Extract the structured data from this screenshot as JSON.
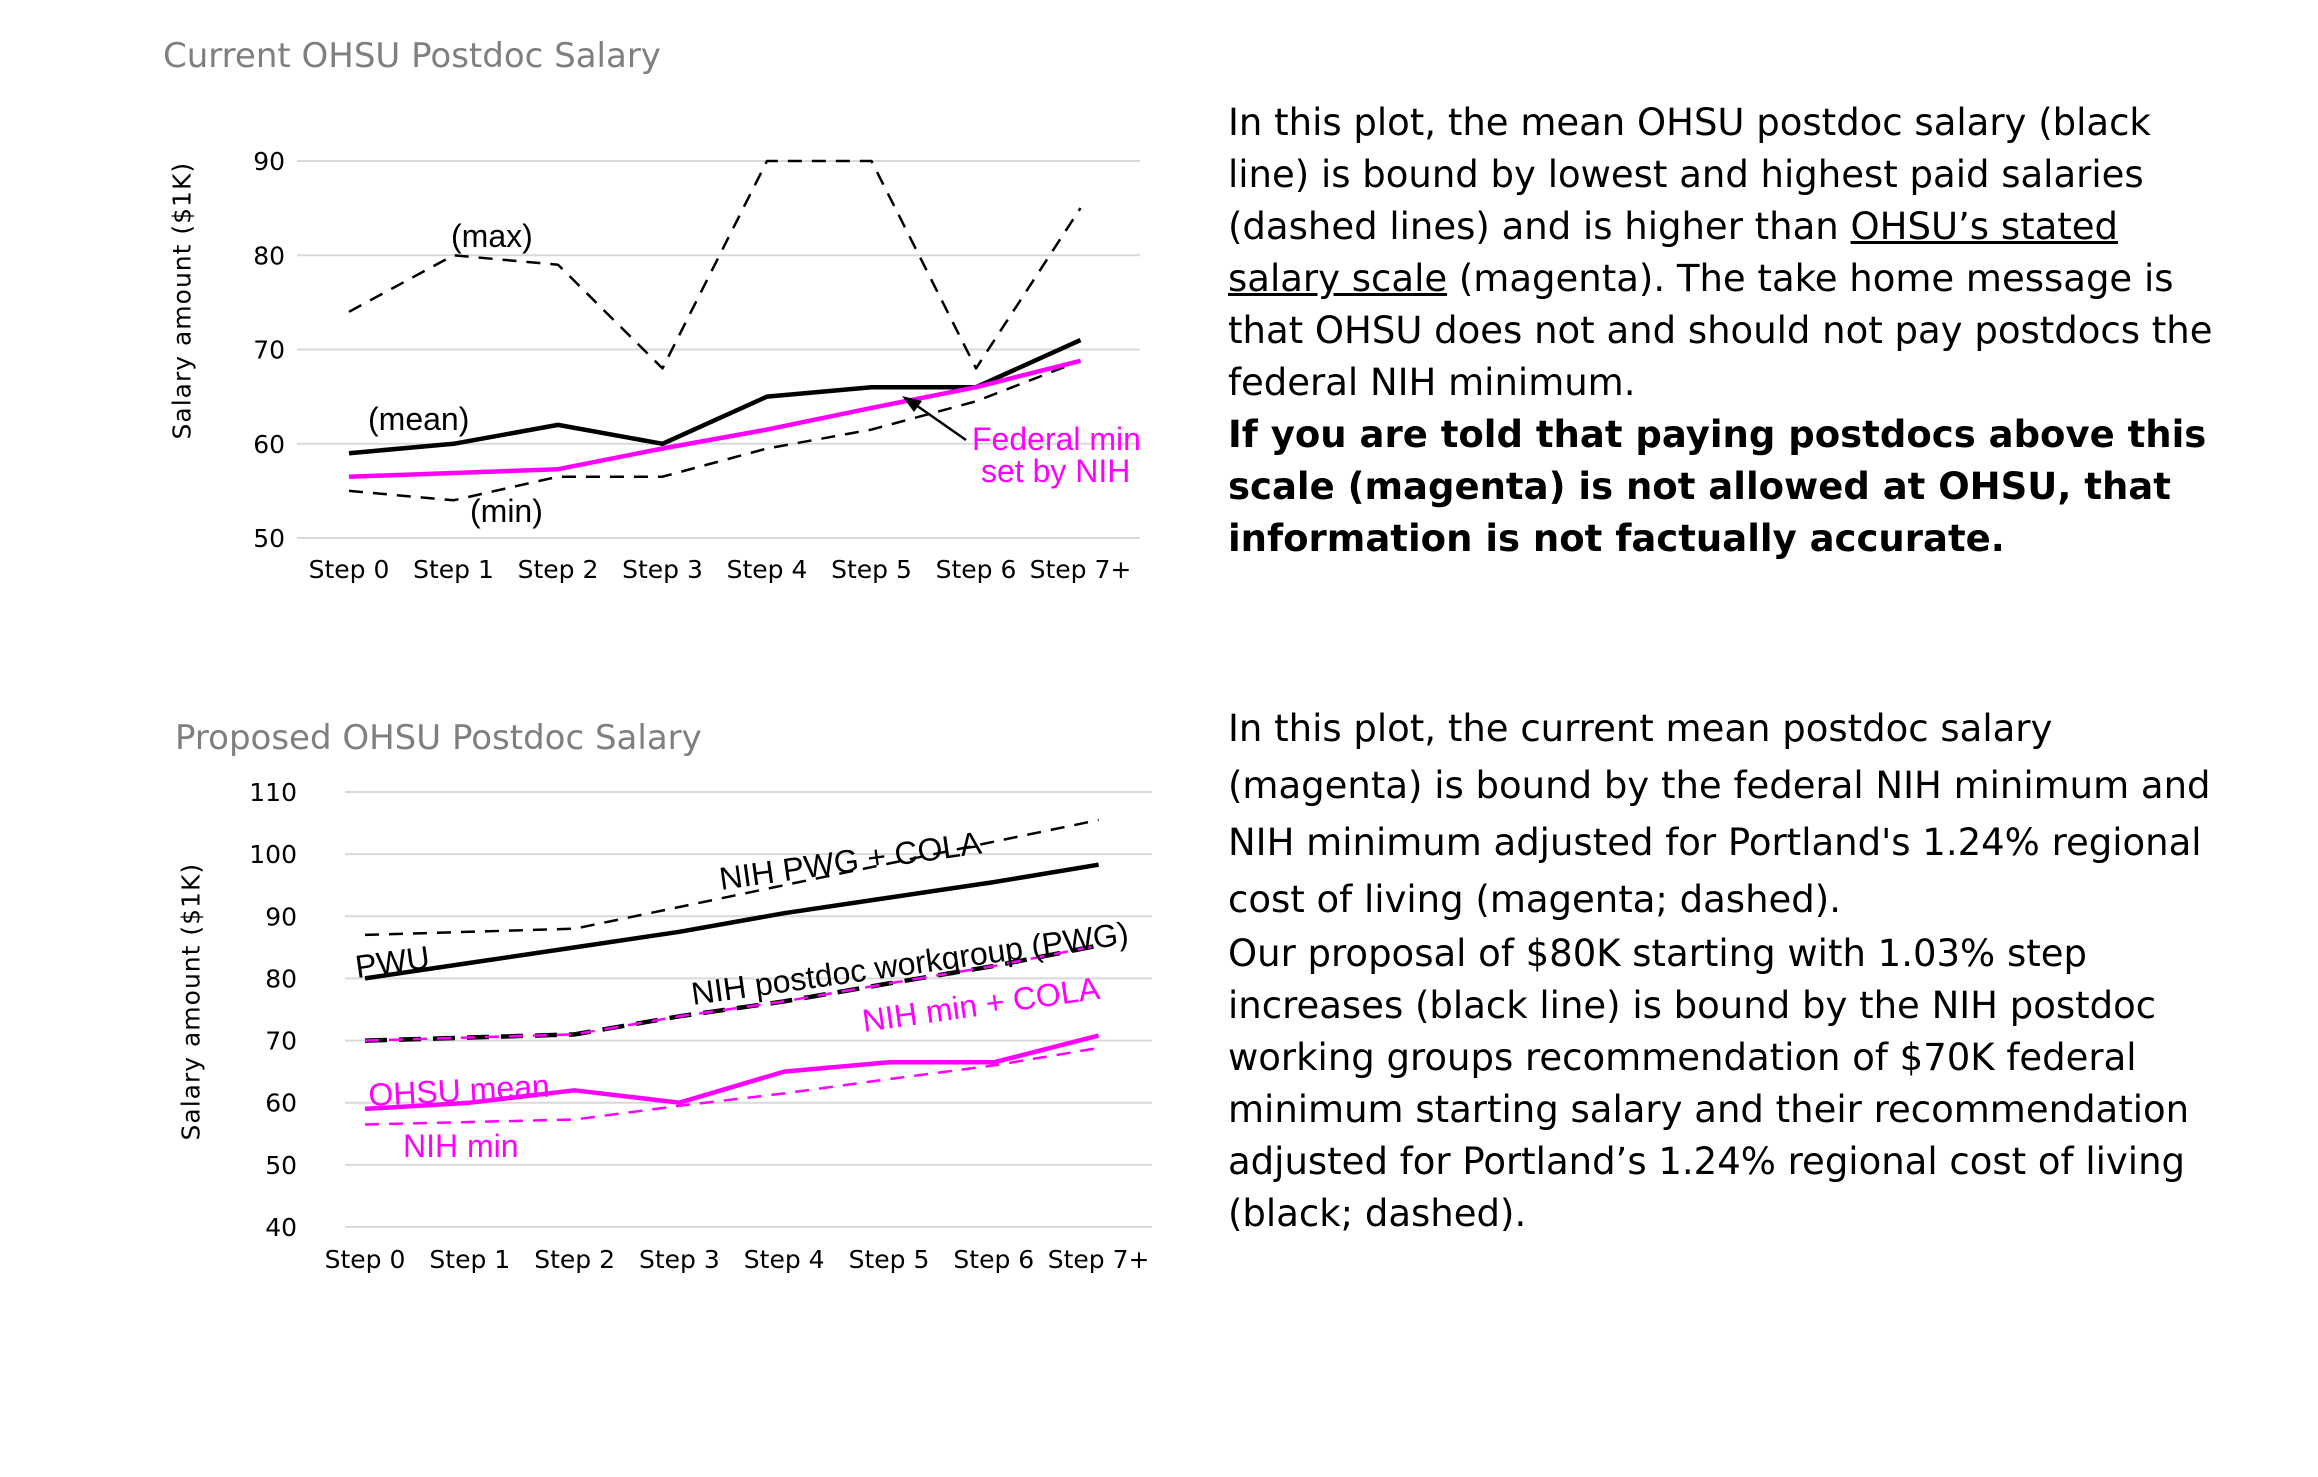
{
  "colors": {
    "grid": "#d9d9d9",
    "black": "#000000",
    "magenta": "#ff00ff",
    "title_gray": "#7f7f7f"
  },
  "chart_data": [
    {
      "type": "line",
      "title": "Current OHSU Postdoc Salary",
      "ylabel": "Salary amount ($1K)",
      "xlabel": "",
      "categories": [
        "Step 0",
        "Step 1",
        "Step 2",
        "Step 3",
        "Step 4",
        "Step 5",
        "Step 6",
        "Step 7+"
      ],
      "ylim": [
        50,
        90
      ],
      "yticks": [
        "50",
        "60",
        "70",
        "80",
        "90"
      ],
      "grid": true,
      "legend": "none",
      "series": [
        {
          "name": "(max)",
          "color": "#000000",
          "style": "dashed",
          "values": [
            74,
            80,
            79,
            68,
            90,
            90,
            68,
            85
          ]
        },
        {
          "name": "(mean)",
          "color": "#000000",
          "style": "solid",
          "values": [
            59,
            60,
            62,
            60,
            65,
            66,
            66,
            71
          ]
        },
        {
          "name": "(min)",
          "color": "#000000",
          "style": "dashed",
          "values": [
            55,
            54,
            56.5,
            56.5,
            59.5,
            61.5,
            64.5,
            68.8
          ]
        },
        {
          "name": "Federal min set by NIH",
          "color": "#ff00ff",
          "style": "solid",
          "values": [
            56.5,
            56.9,
            57.3,
            59.5,
            61.5,
            63.8,
            66.0,
            68.8
          ]
        }
      ],
      "labels": {
        "max": "(max)",
        "mean": "(mean)",
        "min": "(min)",
        "federal_line1": "Federal min",
        "federal_line2": "set by NIH"
      }
    },
    {
      "type": "line",
      "title": "Proposed OHSU Postdoc Salary",
      "ylabel": "Salary amount ($1K)",
      "xlabel": "",
      "categories": [
        "Step 0",
        "Step 1",
        "Step 2",
        "Step 3",
        "Step 4",
        "Step 5",
        "Step 6",
        "Step 7+"
      ],
      "ylim": [
        40,
        110
      ],
      "yticks": [
        "40",
        "50",
        "60",
        "70",
        "80",
        "90",
        "100",
        "110"
      ],
      "grid": true,
      "legend": "none",
      "series": [
        {
          "name": "NIH PWG + COLA",
          "color": "#000000",
          "style": "dashed",
          "values": [
            87,
            87.5,
            88,
            91.5,
            95,
            98.5,
            102,
            105.5
          ]
        },
        {
          "name": "PWU",
          "color": "#000000",
          "style": "solid",
          "values": [
            80,
            82.5,
            85,
            87.5,
            90.5,
            93,
            95.5,
            98.3
          ]
        },
        {
          "name": "NIH postdoc workgroup (PWG)",
          "color": "#000000",
          "style": "dashed",
          "values": [
            70,
            70.5,
            71,
            73.9,
            76.3,
            79.2,
            82.0,
            85.3
          ]
        },
        {
          "name": "NIH min + COLA",
          "color": "#ff00ff",
          "style": "dashed",
          "values": [
            70,
            70.5,
            71,
            73.9,
            76.3,
            79.2,
            82.0,
            85.3
          ]
        },
        {
          "name": "OHSU mean",
          "color": "#ff00ff",
          "style": "solid",
          "values": [
            59,
            60,
            62,
            60,
            65,
            66.5,
            66.5,
            70.8
          ]
        },
        {
          "name": "NIH min",
          "color": "#ff00ff",
          "style": "dashed",
          "values": [
            56.5,
            56.9,
            57.3,
            59.5,
            61.5,
            63.8,
            66.0,
            68.8
          ]
        }
      ],
      "labels": {
        "pwg_cola": "NIH PWG + COLA",
        "pwu": "PWU",
        "pwg": "NIH postdoc workgroup (PWG)",
        "min_cola": "NIH min + COLA",
        "ohsu_mean": "OHSU mean",
        "nih_min": "NIH min"
      }
    }
  ],
  "text": {
    "p1_a": "In this plot, the mean OHSU postdoc salary (black line) is bound by lowest and highest paid salaries (dashed lines) and is higher than ",
    "p1_link": "OHSU’s stated salary scale",
    "p1_b": " (magenta). The take home message is that OHSU does not and should not pay postdocs the federal NIH minimum.",
    "p1_bold": "If you are told that paying postdocs above this scale (magenta) is not allowed at OHSU, that information is not factually accurate.",
    "p2_a": "In this plot, the current mean postdoc salary (magenta) is bound by the federal NIH minimum and NIH minimum adjusted for Portland's 1.24% regional cost of living (magenta; dashed).",
    "p2_b": "Our proposal of $80K starting with 1.03% step increases (black line) is bound by the NIH postdoc working groups recommendation of $70K federal minimum starting salary and their recommendation adjusted for Portland’s 1.24% regional cost of living (black; dashed)."
  }
}
